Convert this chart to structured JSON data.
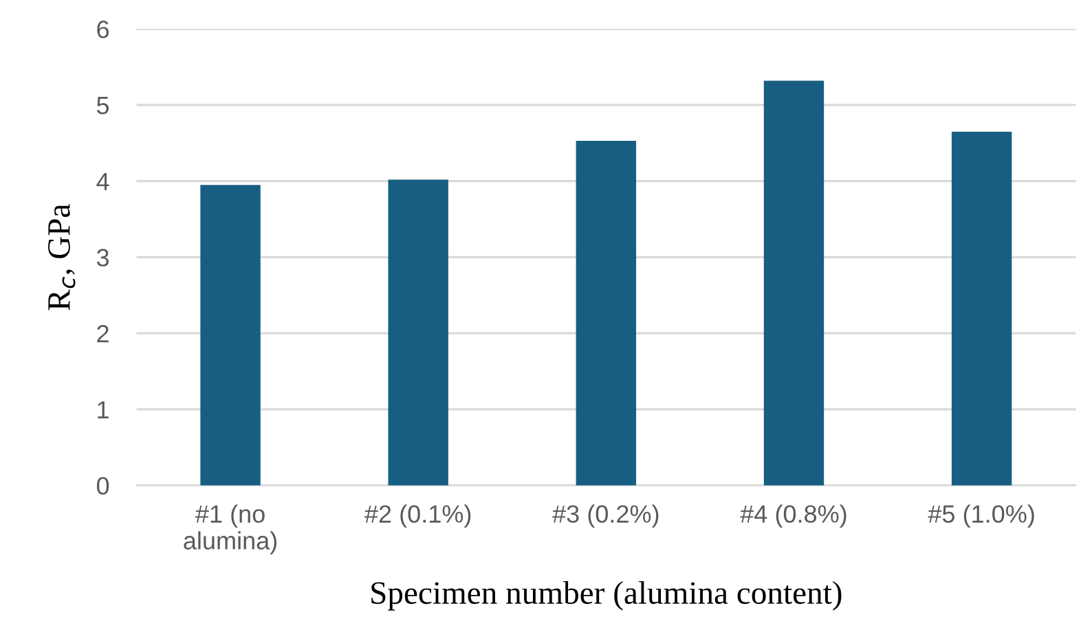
{
  "chart_data": {
    "type": "bar",
    "xlabel": "Specimen number (alumina content)",
    "ylabel": "R$_{c}$, GPa",
    "categories": [
      "#1 (no\nalumina)",
      "#2 (0.1%)",
      "#3 (0.2%)",
      "#4 (0.8%)",
      "#5 (1.0%)"
    ],
    "values": [
      3.95,
      4.02,
      4.53,
      5.32,
      4.65
    ],
    "color": "#175e82",
    "ylim": [
      0,
      6
    ],
    "yticks": [
      0,
      1,
      2,
      3,
      4,
      5,
      6
    ],
    "grid": "y"
  }
}
